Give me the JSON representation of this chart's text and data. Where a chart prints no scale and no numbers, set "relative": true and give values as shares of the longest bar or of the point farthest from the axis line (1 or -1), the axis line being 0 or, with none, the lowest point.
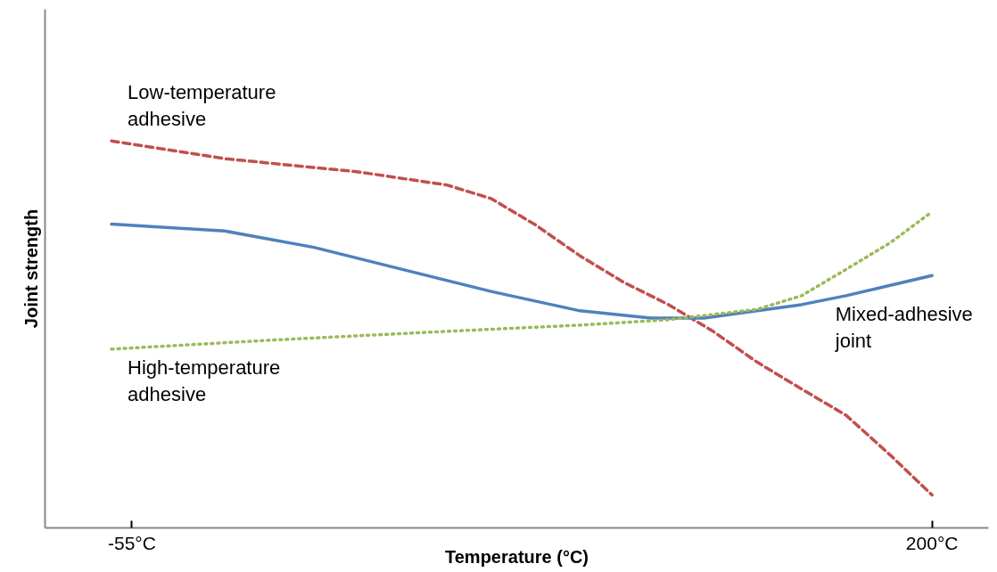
{
  "chart_data": {
    "type": "line",
    "relative": true,
    "xlabel": "Temperature (°C)",
    "ylabel": "Joint strength",
    "xlim": [
      -82.7,
      218
    ],
    "xticks": [
      {
        "value": -55,
        "label": "-55°C"
      },
      {
        "value": 200,
        "label": "200°C"
      }
    ],
    "tick_labels": "x",
    "grid": false,
    "legend": false,
    "marker": "none",
    "series": [
      {
        "name": "Low-temperature\nadhesive",
        "color": "#c0504d",
        "line_style": "dashed",
        "x": [
          -61.5,
          -25.3,
          17.1,
          45.4,
          59.5,
          73.6,
          87.8,
          101.9,
          116.0,
          130.2,
          144.3,
          158.4,
          172.6,
          186.7,
          200
        ],
        "values": [
          1.0,
          0.954,
          0.92,
          0.886,
          0.851,
          0.783,
          0.703,
          0.634,
          0.577,
          0.508,
          0.428,
          0.359,
          0.291,
          0.188,
          0.085
        ]
      },
      {
        "name": "Mixed-adhesive\njoint",
        "color": "#4f81bd",
        "line_style": "solid",
        "x": [
          -61.5,
          -25.3,
          3.0,
          31.2,
          59.5,
          87.8,
          110.4,
          127.3,
          144.3,
          158.4,
          172.6,
          186.7,
          200
        ],
        "values": [
          0.785,
          0.767,
          0.725,
          0.668,
          0.611,
          0.561,
          0.542,
          0.542,
          0.561,
          0.577,
          0.6,
          0.627,
          0.652
        ]
      },
      {
        "name": "High-temperature\nadhesive",
        "color": "#9bbb59",
        "line_style": "dotted",
        "x": [
          -61.5,
          -11.2,
          45.4,
          87.8,
          116.0,
          144.3,
          158.4,
          172.6,
          186.7,
          200
        ],
        "values": [
          0.462,
          0.485,
          0.508,
          0.524,
          0.538,
          0.565,
          0.6,
          0.668,
          0.737,
          0.817
        ]
      }
    ]
  }
}
